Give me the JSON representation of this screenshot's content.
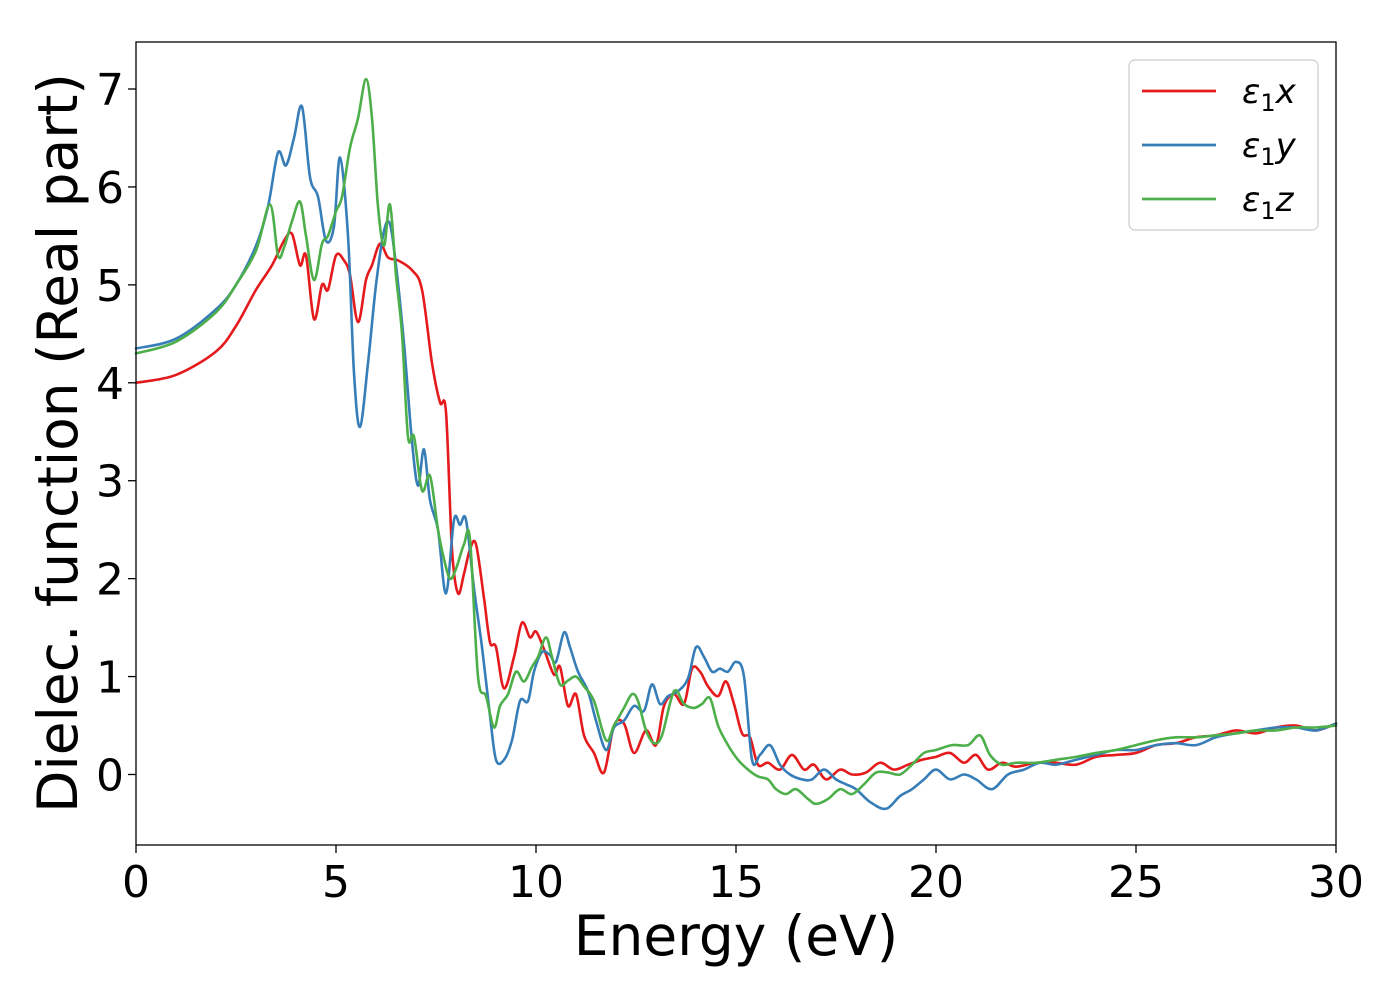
{
  "chart_data": {
    "type": "line",
    "xlabel": "Energy (eV)",
    "ylabel": "Dielec. function (Real part)",
    "xlim": [
      0,
      30
    ],
    "ylim": [
      -0.72,
      7.48
    ],
    "xticks": [
      0,
      5,
      10,
      15,
      20,
      25,
      30
    ],
    "yticks": [
      0,
      1,
      2,
      3,
      4,
      5,
      6,
      7
    ],
    "grid": false,
    "legend_position": "top-right",
    "series": [
      {
        "name": "ε₁x",
        "legend_base": "ε",
        "legend_sub": "1",
        "legend_suffix": "x",
        "color": "#e41a1c",
        "x": [
          0,
          1,
          2,
          2.5,
          3,
          3.4,
          3.7,
          3.9,
          4.1,
          4.25,
          4.45,
          4.65,
          4.8,
          5.0,
          5.2,
          5.35,
          5.55,
          5.75,
          5.9,
          6.1,
          6.3,
          6.55,
          6.9,
          7.15,
          7.4,
          7.6,
          7.75,
          7.9,
          8.05,
          8.2,
          8.35,
          8.5,
          8.7,
          8.85,
          9.0,
          9.2,
          9.45,
          9.65,
          9.85,
          10.0,
          10.2,
          10.45,
          10.6,
          10.8,
          11.0,
          11.2,
          11.45,
          11.7,
          11.95,
          12.2,
          12.45,
          12.75,
          13.0,
          13.2,
          13.45,
          13.7,
          13.9,
          14.1,
          14.3,
          14.55,
          14.75,
          14.95,
          15.15,
          15.35,
          15.55,
          15.8,
          16.1,
          16.4,
          16.7,
          16.95,
          17.25,
          17.6,
          17.9,
          18.25,
          18.6,
          18.95,
          19.3,
          19.65,
          20.0,
          20.35,
          20.7,
          21.0,
          21.3,
          21.65,
          22.0,
          22.5,
          23.0,
          23.5,
          24.0,
          24.5,
          25.0,
          25.5,
          26.0,
          26.5,
          27.0,
          27.5,
          28.0,
          28.5,
          29.0,
          29.5,
          30.0
        ],
        "y": [
          4.0,
          4.08,
          4.32,
          4.58,
          4.95,
          5.2,
          5.45,
          5.52,
          5.2,
          5.3,
          4.65,
          5.0,
          4.95,
          5.3,
          5.25,
          5.1,
          4.62,
          5.05,
          5.2,
          5.42,
          5.28,
          5.25,
          5.15,
          4.95,
          4.2,
          3.8,
          3.7,
          2.3,
          1.85,
          2.05,
          2.3,
          2.35,
          1.8,
          1.35,
          1.3,
          0.88,
          1.2,
          1.55,
          1.4,
          1.46,
          1.28,
          1.02,
          1.1,
          0.7,
          0.82,
          0.4,
          0.22,
          0.02,
          0.5,
          0.52,
          0.22,
          0.45,
          0.3,
          0.7,
          0.82,
          0.72,
          1.08,
          1.05,
          0.9,
          0.8,
          0.95,
          0.72,
          0.42,
          0.38,
          0.1,
          0.12,
          0.05,
          0.2,
          0.05,
          0.1,
          -0.05,
          0.05,
          0.0,
          0.02,
          0.12,
          0.05,
          0.1,
          0.15,
          0.18,
          0.22,
          0.12,
          0.2,
          0.05,
          0.12,
          0.08,
          0.12,
          0.12,
          0.1,
          0.18,
          0.2,
          0.22,
          0.3,
          0.32,
          0.38,
          0.4,
          0.45,
          0.42,
          0.48,
          0.5,
          0.45,
          0.52
        ]
      },
      {
        "name": "ε₁y",
        "legend_base": "ε",
        "legend_sub": "1",
        "legend_suffix": "y",
        "color": "#377eb8",
        "x": [
          0,
          1,
          2,
          2.5,
          3,
          3.3,
          3.55,
          3.75,
          3.95,
          4.15,
          4.35,
          4.55,
          4.75,
          4.95,
          5.1,
          5.3,
          5.45,
          5.6,
          5.8,
          6.0,
          6.2,
          6.35,
          6.5,
          6.7,
          6.9,
          7.05,
          7.2,
          7.35,
          7.55,
          7.75,
          7.95,
          8.1,
          8.25,
          8.45,
          8.65,
          8.85,
          9.0,
          9.2,
          9.4,
          9.6,
          9.8,
          9.95,
          10.15,
          10.35,
          10.5,
          10.7,
          10.85,
          11.05,
          11.3,
          11.5,
          11.75,
          11.95,
          12.2,
          12.45,
          12.7,
          12.9,
          13.1,
          13.3,
          13.55,
          13.8,
          14.0,
          14.2,
          14.4,
          14.6,
          14.8,
          15.0,
          15.2,
          15.4,
          15.6,
          15.85,
          16.1,
          16.35,
          16.65,
          16.9,
          17.2,
          17.5,
          17.75,
          18.0,
          18.35,
          18.75,
          19.1,
          19.4,
          19.7,
          20.0,
          20.35,
          20.7,
          21.0,
          21.4,
          21.8,
          22.2,
          22.6,
          23.0,
          23.5,
          24.0,
          24.5,
          25.0,
          25.5,
          26.0,
          26.5,
          27.0,
          27.5,
          28.0,
          28.5,
          29.0,
          29.5,
          30.0
        ],
        "y": [
          4.35,
          4.45,
          4.75,
          5.0,
          5.4,
          5.8,
          6.35,
          6.22,
          6.5,
          6.82,
          6.1,
          5.9,
          5.45,
          5.6,
          6.3,
          5.5,
          4.1,
          3.55,
          4.2,
          5.0,
          5.55,
          5.62,
          5.2,
          4.4,
          3.4,
          2.95,
          3.32,
          2.8,
          2.5,
          1.85,
          2.6,
          2.55,
          2.6,
          1.9,
          1.3,
          0.6,
          0.15,
          0.15,
          0.35,
          0.75,
          0.75,
          1.05,
          1.25,
          1.22,
          1.15,
          1.45,
          1.3,
          1.05,
          0.85,
          0.55,
          0.25,
          0.48,
          0.55,
          0.7,
          0.65,
          0.92,
          0.72,
          0.8,
          0.85,
          0.98,
          1.3,
          1.2,
          1.05,
          1.08,
          1.05,
          1.15,
          1.0,
          0.15,
          0.2,
          0.3,
          0.1,
          0.0,
          -0.05,
          -0.05,
          0.05,
          -0.05,
          -0.1,
          -0.15,
          -0.28,
          -0.35,
          -0.22,
          -0.15,
          -0.05,
          0.05,
          -0.05,
          0.0,
          -0.05,
          -0.15,
          0.0,
          0.05,
          0.12,
          0.1,
          0.15,
          0.2,
          0.25,
          0.25,
          0.3,
          0.32,
          0.3,
          0.38,
          0.42,
          0.45,
          0.48,
          0.48,
          0.45,
          0.52
        ]
      },
      {
        "name": "ε₁z",
        "legend_base": "ε",
        "legend_sub": "1",
        "legend_suffix": "z",
        "color": "#4daf4a",
        "x": [
          0,
          1,
          2,
          2.5,
          3,
          3.35,
          3.55,
          3.7,
          3.9,
          4.1,
          4.25,
          4.45,
          4.65,
          4.8,
          5.0,
          5.15,
          5.35,
          5.55,
          5.75,
          5.9,
          6.05,
          6.2,
          6.35,
          6.5,
          6.65,
          6.8,
          6.95,
          7.15,
          7.35,
          7.55,
          7.7,
          7.85,
          8.0,
          8.2,
          8.35,
          8.55,
          8.75,
          8.95,
          9.1,
          9.3,
          9.5,
          9.7,
          9.9,
          10.05,
          10.25,
          10.4,
          10.6,
          10.8,
          11.0,
          11.2,
          11.45,
          11.75,
          11.95,
          12.2,
          12.4,
          12.55,
          12.75,
          12.95,
          13.15,
          13.45,
          13.7,
          13.95,
          14.15,
          14.35,
          14.55,
          14.8,
          15.05,
          15.3,
          15.55,
          15.8,
          16.0,
          16.25,
          16.5,
          16.8,
          17.0,
          17.3,
          17.6,
          17.9,
          18.2,
          18.5,
          18.8,
          19.1,
          19.4,
          19.7,
          20.0,
          20.4,
          20.8,
          21.1,
          21.35,
          21.65,
          22.0,
          22.5,
          23.0,
          23.5,
          24.0,
          24.5,
          25.0,
          25.5,
          26.0,
          26.5,
          27.0,
          27.5,
          28.0,
          28.5,
          29.0,
          29.5,
          30.0
        ],
        "y": [
          4.3,
          4.42,
          4.72,
          5.0,
          5.35,
          5.82,
          5.3,
          5.38,
          5.65,
          5.85,
          5.5,
          5.05,
          5.42,
          5.5,
          5.75,
          5.9,
          6.4,
          6.7,
          7.1,
          6.7,
          5.8,
          5.4,
          5.82,
          5.1,
          4.5,
          3.45,
          3.45,
          2.9,
          3.05,
          2.5,
          2.2,
          2.0,
          2.1,
          2.35,
          2.4,
          1.0,
          0.8,
          0.48,
          0.7,
          0.82,
          1.05,
          0.95,
          1.1,
          1.2,
          1.4,
          1.2,
          0.92,
          0.96,
          1.0,
          0.9,
          0.75,
          0.35,
          0.5,
          0.68,
          0.82,
          0.75,
          0.45,
          0.32,
          0.4,
          0.85,
          0.72,
          0.68,
          0.72,
          0.78,
          0.5,
          0.3,
          0.15,
          0.05,
          -0.02,
          -0.05,
          -0.15,
          -0.2,
          -0.15,
          -0.25,
          -0.3,
          -0.25,
          -0.15,
          -0.2,
          -0.1,
          0.02,
          0.02,
          0.0,
          0.1,
          0.22,
          0.25,
          0.3,
          0.3,
          0.4,
          0.2,
          0.1,
          0.12,
          0.12,
          0.15,
          0.18,
          0.22,
          0.25,
          0.3,
          0.35,
          0.38,
          0.38,
          0.4,
          0.42,
          0.45,
          0.45,
          0.48,
          0.48,
          0.5
        ]
      }
    ]
  }
}
